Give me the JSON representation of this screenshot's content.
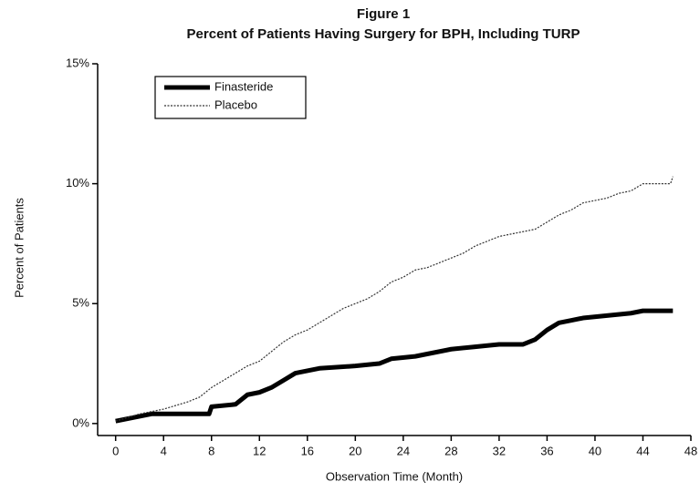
{
  "chart_data": {
    "type": "line",
    "title": "Figure 1",
    "subtitle": "Percent of Patients Having Surgery for BPH, Including TURP",
    "xlabel": "Observation Time (Month)",
    "ylabel": "Percent of Patients",
    "xlim": [
      -1.5,
      48
    ],
    "ylim": [
      -0.5,
      15
    ],
    "xticks": [
      0,
      4,
      8,
      12,
      16,
      20,
      24,
      28,
      32,
      36,
      40,
      44,
      48
    ],
    "yticks": [
      {
        "value": 0,
        "label": "0%"
      },
      {
        "value": 5,
        "label": "5%"
      },
      {
        "value": 10,
        "label": "10%"
      },
      {
        "value": 15,
        "label": "15%"
      }
    ],
    "legend": "upper left",
    "series": [
      {
        "name": "Finasteride",
        "color": "#000000",
        "x": [
          0,
          1,
          2,
          3,
          4,
          6,
          7.8,
          8,
          10,
          11,
          12,
          13,
          14,
          15,
          16,
          17,
          20,
          22,
          23,
          25,
          26,
          28,
          30,
          32,
          34,
          35,
          36,
          37,
          38,
          39,
          41,
          43,
          44,
          46.5
        ],
        "values": [
          0.1,
          0.2,
          0.3,
          0.4,
          0.4,
          0.4,
          0.4,
          0.7,
          0.8,
          1.2,
          1.3,
          1.5,
          1.8,
          2.1,
          2.2,
          2.3,
          2.4,
          2.5,
          2.7,
          2.8,
          2.9,
          3.1,
          3.2,
          3.3,
          3.3,
          3.5,
          3.9,
          4.2,
          4.3,
          4.4,
          4.5,
          4.6,
          4.7,
          4.7
        ]
      },
      {
        "name": "Placebo",
        "color": "#333333",
        "x": [
          0,
          2,
          4,
          6,
          7,
          8,
          9,
          10,
          11,
          12,
          13,
          14,
          15,
          16,
          17,
          18,
          19,
          20,
          21,
          22,
          23,
          24,
          25,
          26,
          27,
          28,
          29,
          30,
          31,
          32,
          33,
          34,
          35,
          36,
          37,
          38,
          39,
          40,
          41,
          42,
          43,
          44,
          45,
          46.3,
          46.5
        ],
        "values": [
          0.1,
          0.4,
          0.6,
          0.9,
          1.1,
          1.5,
          1.8,
          2.1,
          2.4,
          2.6,
          3.0,
          3.4,
          3.7,
          3.9,
          4.2,
          4.5,
          4.8,
          5.0,
          5.2,
          5.5,
          5.9,
          6.1,
          6.4,
          6.5,
          6.7,
          6.9,
          7.1,
          7.4,
          7.6,
          7.8,
          7.9,
          8.0,
          8.1,
          8.4,
          8.7,
          8.9,
          9.2,
          9.3,
          9.4,
          9.6,
          9.7,
          10.0,
          10.0,
          10.0,
          10.3
        ]
      }
    ]
  }
}
